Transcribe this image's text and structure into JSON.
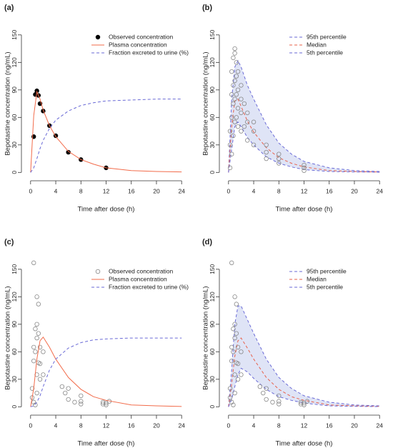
{
  "chart_data": [
    {
      "type": "line",
      "title": "(a)",
      "xlabel": "Time after dose (h)",
      "ylabel": "Bepotastine concentration (ng/mL)",
      "xlim": [
        -1,
        25
      ],
      "ylim": [
        -6,
        160
      ],
      "xticks": [
        0,
        4,
        8,
        12,
        16,
        20,
        24
      ],
      "yticks": [
        0,
        30,
        60,
        90,
        120,
        150
      ],
      "legend": "topright",
      "x": [
        0,
        0.5,
        1,
        1.5,
        2,
        3,
        4,
        6,
        8,
        10,
        12,
        16,
        20,
        24
      ],
      "series": [
        {
          "name": "Observed concentration",
          "style": "points",
          "marker": "filled",
          "color": "#000000",
          "x": [
            0.5,
            0.75,
            1,
            1.25,
            1.5,
            2,
            3,
            4,
            6,
            8,
            12
          ],
          "values": [
            39,
            85,
            89,
            84,
            75,
            67,
            51,
            40,
            22,
            14,
            5
          ]
        },
        {
          "name": "Plasma concentration",
          "style": "solid",
          "color": "#f26b4a",
          "values": [
            0,
            62,
            88,
            80,
            68,
            51,
            39,
            23,
            14,
            9,
            5,
            2,
            1,
            0.5
          ]
        },
        {
          "name": "Fraction excreted to urine (%)",
          "style": "dashed",
          "color": "#6a6ad6",
          "values": [
            0,
            5,
            15,
            26,
            35,
            48,
            57,
            67,
            73,
            76,
            78,
            79,
            80,
            80
          ]
        }
      ]
    },
    {
      "type": "line",
      "title": "(b)",
      "xlabel": "Time after dose (h)",
      "ylabel": "Bepotastine concentration (ng/mL)",
      "xlim": [
        -1,
        25
      ],
      "ylim": [
        -6,
        160
      ],
      "xticks": [
        0,
        4,
        8,
        12,
        16,
        20,
        24
      ],
      "yticks": [
        0,
        30,
        60,
        90,
        120,
        150
      ],
      "legend": "topright",
      "band_color": "#dfe4f6",
      "x": [
        0,
        0.5,
        1,
        1.5,
        2,
        3,
        4,
        6,
        8,
        10,
        12,
        16,
        20,
        24
      ],
      "series": [
        {
          "name": "95th percentile",
          "style": "dashed",
          "color": "#6a6ad6",
          "values": [
            0,
            80,
            115,
            122,
            115,
            95,
            80,
            52,
            32,
            20,
            12,
            5,
            2,
            1
          ]
        },
        {
          "name": "Median",
          "style": "dashed",
          "color": "#e8604a",
          "values": [
            0,
            50,
            78,
            80,
            72,
            56,
            44,
            27,
            16,
            10,
            6,
            2,
            1,
            0.5
          ]
        },
        {
          "name": "5th percentile",
          "style": "dashed",
          "color": "#6a6ad6",
          "values": [
            0,
            25,
            50,
            55,
            50,
            38,
            30,
            17,
            10,
            6,
            3,
            1,
            0.5,
            0.2
          ]
        },
        {
          "style": "points",
          "marker": "open",
          "color": "#888888",
          "x": [
            0.25,
            0.25,
            0.25,
            0.5,
            0.5,
            0.5,
            0.5,
            0.75,
            0.75,
            0.75,
            0.75,
            1,
            1,
            1,
            1,
            1,
            1.25,
            1.25,
            1.25,
            1.25,
            1.5,
            1.5,
            1.5,
            1.5,
            2,
            2,
            2,
            2,
            2.5,
            2.5,
            3,
            3,
            3,
            4,
            4,
            4,
            6,
            6,
            6,
            8,
            8,
            8,
            12,
            12,
            12
          ],
          "values": [
            5,
            30,
            45,
            20,
            60,
            85,
            110,
            40,
            75,
            95,
            125,
            55,
            80,
            100,
            130,
            135,
            60,
            85,
            105,
            120,
            50,
            70,
            90,
            110,
            45,
            65,
            80,
            95,
            50,
            75,
            35,
            55,
            65,
            30,
            45,
            55,
            15,
            22,
            30,
            10,
            15,
            20,
            2,
            5,
            8
          ]
        }
      ]
    },
    {
      "type": "line",
      "title": "(c)",
      "xlabel": "Time after dose (h)",
      "ylabel": "Bepotastine concentration (ng/mL)",
      "xlim": [
        -1,
        25
      ],
      "ylim": [
        -6,
        160
      ],
      "xticks": [
        0,
        4,
        8,
        12,
        16,
        20,
        24
      ],
      "yticks": [
        0,
        30,
        60,
        90,
        120,
        150
      ],
      "legend": "topright",
      "x": [
        0,
        0.5,
        1,
        1.5,
        2,
        3,
        4,
        6,
        8,
        10,
        12,
        16,
        20,
        24
      ],
      "series": [
        {
          "name": "Observed concentration",
          "style": "points",
          "marker": "open",
          "color": "#888888",
          "x": [
            0.25,
            0.25,
            0.5,
            0.5,
            0.5,
            0.5,
            0.75,
            0.75,
            0.75,
            1,
            1,
            1,
            1,
            1,
            1.25,
            1.25,
            1.25,
            1.5,
            1.5,
            1.5,
            2,
            2,
            5,
            5.5,
            6,
            6,
            7,
            8,
            8,
            8,
            11.5,
            11.5,
            12,
            12,
            12.5
          ],
          "values": [
            10,
            20,
            157,
            65,
            50,
            5,
            85,
            60,
            2,
            120,
            90,
            75,
            35,
            15,
            112,
            80,
            48,
            65,
            47,
            30,
            60,
            35,
            22,
            15,
            20,
            8,
            5,
            12,
            6,
            3,
            3,
            5,
            2,
            4,
            6
          ]
        },
        {
          "name": "Plasma concentration",
          "style": "solid",
          "color": "#f26b4a",
          "values": [
            0,
            20,
            52,
            72,
            76,
            65,
            52,
            32,
            19,
            11,
            7,
            2,
            1,
            0.3
          ]
        },
        {
          "name": "Fraction excreted to urine (%)",
          "style": "dashed",
          "color": "#6a6ad6",
          "values": [
            0,
            1,
            5,
            12,
            22,
            40,
            52,
            64,
            70,
            73,
            74,
            75,
            75,
            75
          ]
        }
      ]
    },
    {
      "type": "line",
      "title": "(d)",
      "xlabel": "Time after dose (h)",
      "ylabel": "Bepotastine concentration (ng/mL)",
      "xlim": [
        -1,
        25
      ],
      "ylim": [
        -6,
        160
      ],
      "xticks": [
        0,
        4,
        8,
        12,
        16,
        20,
        24
      ],
      "yticks": [
        0,
        30,
        60,
        90,
        120,
        150
      ],
      "legend": "topright",
      "band_color": "#dfe4f6",
      "x": [
        0,
        0.5,
        1,
        1.5,
        2,
        3,
        4,
        6,
        8,
        10,
        12,
        16,
        20,
        24
      ],
      "series": [
        {
          "name": "95th percentile",
          "style": "dashed",
          "color": "#6a6ad6",
          "values": [
            0,
            40,
            90,
            110,
            110,
            95,
            80,
            52,
            32,
            20,
            12,
            5,
            2,
            1
          ]
        },
        {
          "name": "Median",
          "style": "dashed",
          "color": "#e8604a",
          "values": [
            0,
            25,
            55,
            72,
            75,
            64,
            52,
            32,
            19,
            11,
            7,
            2,
            1,
            0.3
          ]
        },
        {
          "name": "5th percentile",
          "style": "dashed",
          "color": "#6a6ad6",
          "values": [
            0,
            8,
            22,
            35,
            42,
            38,
            31,
            19,
            11,
            7,
            4,
            1,
            0.5,
            0.2
          ]
        },
        {
          "style": "points",
          "marker": "open",
          "color": "#888888",
          "x": [
            0.25,
            0.25,
            0.5,
            0.5,
            0.5,
            0.5,
            0.75,
            0.75,
            0.75,
            1,
            1,
            1,
            1,
            1,
            1.25,
            1.25,
            1.25,
            1.5,
            1.5,
            1.5,
            2,
            2,
            5,
            5.5,
            6,
            6,
            7,
            8,
            8,
            8,
            11.5,
            11.5,
            12,
            12,
            12.5
          ],
          "values": [
            10,
            20,
            157,
            65,
            50,
            5,
            85,
            60,
            2,
            120,
            90,
            75,
            35,
            15,
            112,
            80,
            48,
            65,
            47,
            30,
            60,
            35,
            22,
            15,
            20,
            8,
            5,
            12,
            6,
            3,
            3,
            5,
            2,
            4,
            6
          ]
        }
      ]
    }
  ]
}
